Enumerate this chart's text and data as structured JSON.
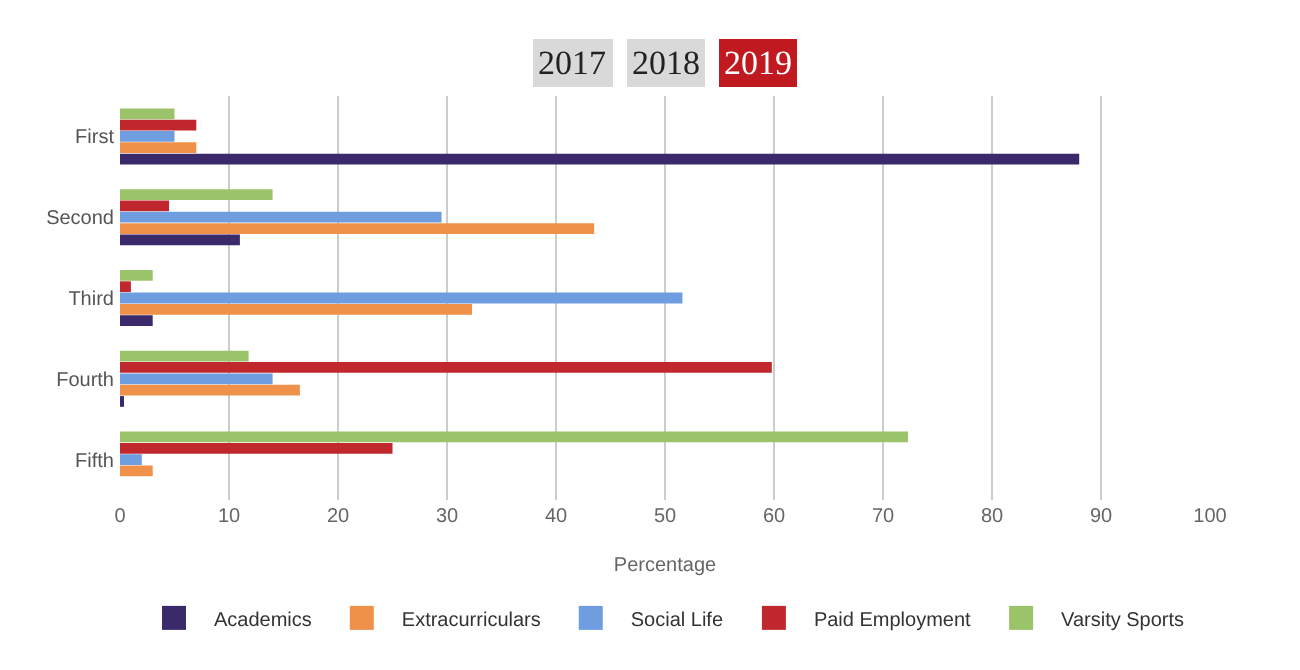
{
  "chart_data": {
    "type": "bar",
    "orientation": "horizontal",
    "xlabel": "Percentage",
    "annotations": [
      "2017",
      "2018",
      "2019"
    ],
    "categories": [
      "First",
      "Second",
      "Third",
      "Fourth",
      "Fifth"
    ],
    "series": [
      {
        "name": "Academics",
        "color": "#3b2a6b",
        "values": [
          88,
          11,
          3,
          0.3,
          0
        ]
      },
      {
        "name": "Extracurriculars",
        "color": "#f0914a",
        "values": [
          7,
          43.5,
          32.3,
          16.5,
          3
        ]
      },
      {
        "name": "Social Life",
        "color": "#6f9ee0",
        "values": [
          5,
          29.5,
          51.6,
          14,
          2
        ]
      },
      {
        "name": "Paid Employment",
        "color": "#c0282d",
        "values": [
          7,
          4.5,
          1,
          59.8,
          25
        ]
      },
      {
        "name": "Varsity Sports",
        "color": "#9bc46a",
        "values": [
          5,
          14,
          3,
          11.8,
          72.3
        ]
      }
    ],
    "xlim": [
      0,
      100
    ],
    "xticks": [
      0,
      10,
      20,
      30,
      40,
      50,
      60,
      70,
      80,
      90,
      100
    ],
    "grid": "x",
    "legend": "bottom"
  }
}
